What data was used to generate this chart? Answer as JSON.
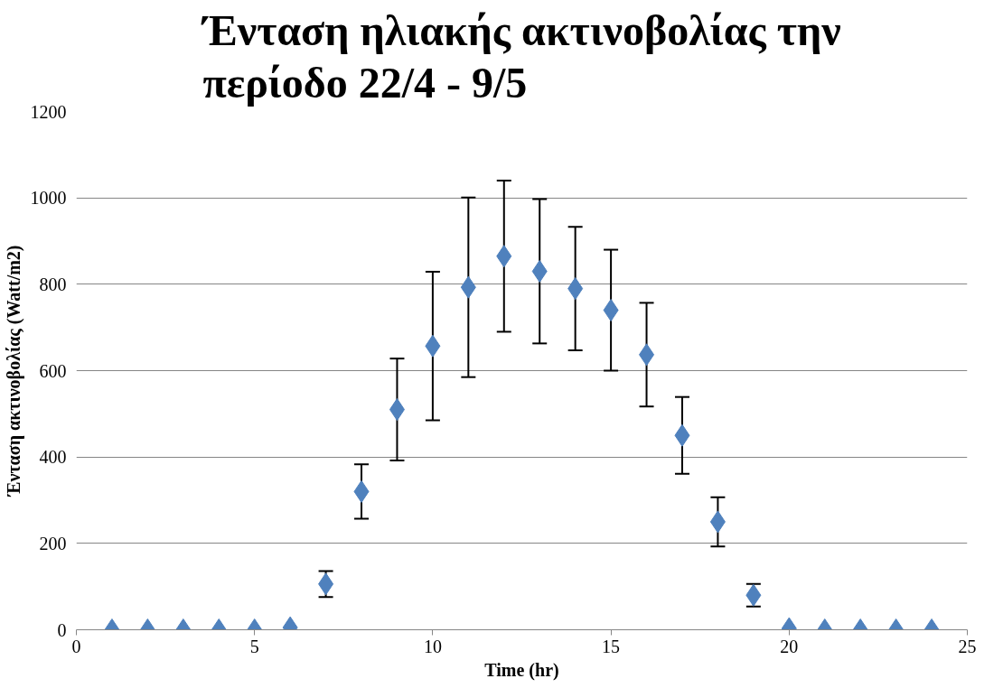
{
  "chart_data": {
    "type": "scatter",
    "title": "Ένταση ηλιακής ακτινοβολίας την\nπερίοδο 22/4 - 9/5",
    "xlabel": "Time (hr)",
    "ylabel": "Ένταση ακτινοβολίας (Watt/m2)",
    "x": [
      1,
      2,
      3,
      4,
      5,
      6,
      7,
      8,
      9,
      10,
      11,
      12,
      13,
      14,
      15,
      16,
      17,
      18,
      19,
      20,
      21,
      22,
      23,
      24
    ],
    "series": [
      {
        "color": "#4f81bd",
        "values": [
          0,
          0,
          0,
          0,
          0,
          5,
          106,
          320,
          510,
          657,
          793,
          865,
          830,
          790,
          740,
          637,
          450,
          250,
          80,
          3,
          0,
          0,
          0,
          0
        ],
        "errors": [
          null,
          null,
          null,
          null,
          null,
          null,
          30,
          63,
          118,
          172,
          208,
          175,
          167,
          143,
          140,
          120,
          89,
          57,
          26,
          null,
          null,
          null,
          null,
          null
        ]
      }
    ],
    "xlim": [
      0,
      25
    ],
    "xticks": [
      0,
      5,
      10,
      15,
      20,
      25
    ],
    "ylim": [
      0,
      1200
    ],
    "yticks": [
      0,
      200,
      400,
      600,
      800,
      1000,
      1200
    ],
    "grid": "y",
    "marker": "diamond"
  }
}
